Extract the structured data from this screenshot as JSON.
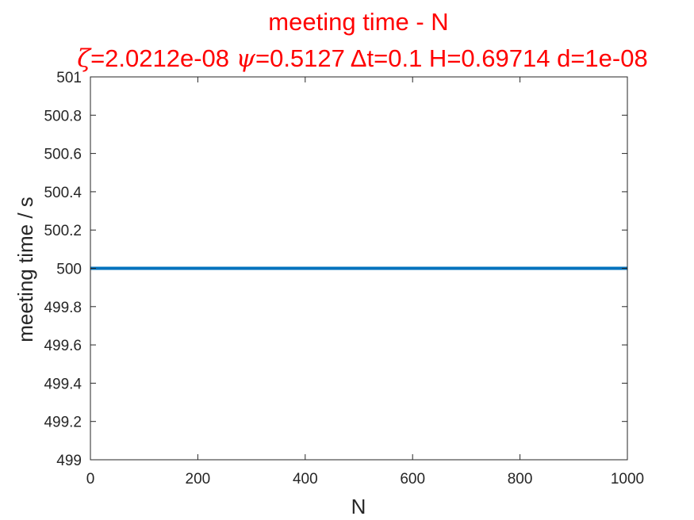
{
  "chart_data": {
    "type": "line",
    "title": "meeting time - N",
    "subtitle": {
      "zeta_symbol": "ζ",
      "zeta_value": "=2.0212e-08 ",
      "psi_symbol": "ψ",
      "psi_value": "=0.5127 ",
      "rest": "Δt=0.1 H=0.69714 d=1e-08"
    },
    "xlabel": "N",
    "ylabel": "meeting time / s",
    "xlim": [
      0,
      1000
    ],
    "ylim": [
      499,
      501
    ],
    "xticks": [
      0,
      200,
      400,
      600,
      800,
      1000
    ],
    "yticks": [
      499,
      499.2,
      499.4,
      499.6,
      499.8,
      500,
      500.2,
      500.4,
      500.6,
      500.8,
      501
    ],
    "ytick_labels": [
      "499",
      "499.2",
      "499.4",
      "499.6",
      "499.8",
      "500",
      "500.2",
      "500.4",
      "500.6",
      "500.8",
      "501"
    ],
    "grid": false,
    "series": [
      {
        "x": [
          0,
          1000
        ],
        "y": [
          500,
          500
        ],
        "color": "#0072BD"
      }
    ],
    "colors": {
      "title": "#ff0000",
      "axis": "#262626",
      "line": "#0072BD"
    }
  }
}
